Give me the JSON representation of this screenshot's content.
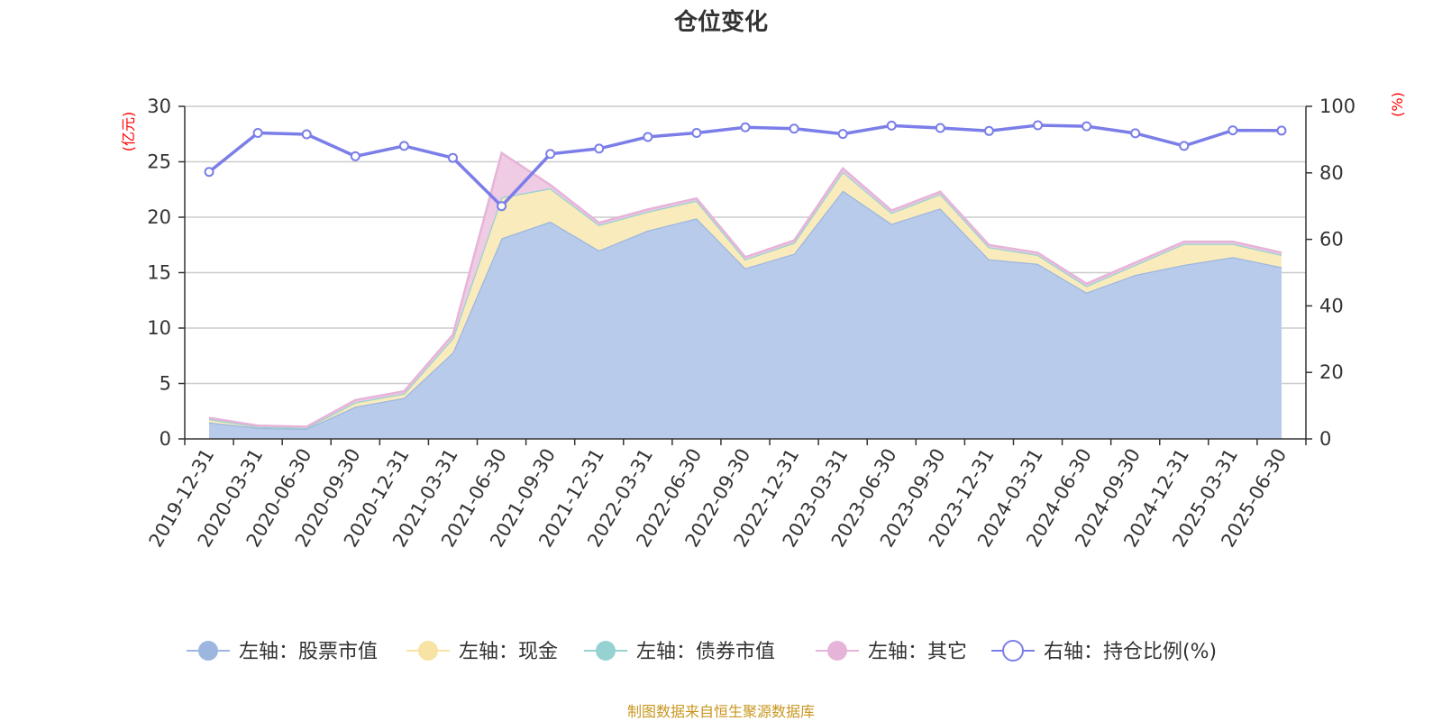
{
  "chart_data": {
    "type": "area",
    "title": "仓位变化",
    "left_unit": "(亿元)",
    "right_unit": "(%)",
    "source": "制图数据来自恒生聚源数据库",
    "x": [
      "2019-12-31",
      "2020-03-31",
      "2020-06-30",
      "2020-09-30",
      "2020-12-31",
      "2021-03-31",
      "2021-06-30",
      "2021-09-30",
      "2021-12-31",
      "2022-03-31",
      "2022-06-30",
      "2022-09-30",
      "2022-12-31",
      "2023-03-31",
      "2023-06-30",
      "2023-09-30",
      "2023-12-31",
      "2024-03-31",
      "2024-06-30",
      "2024-09-30",
      "2024-12-31",
      "2025-03-31",
      "2025-06-30"
    ],
    "left_axis": {
      "min": 0,
      "max": 30,
      "ticks": [
        "0",
        "5",
        "10",
        "15",
        "20",
        "25",
        "30"
      ]
    },
    "right_axis": {
      "min": 0,
      "max": 100,
      "ticks": [
        "0",
        "20",
        "40",
        "60",
        "80",
        "100"
      ]
    },
    "series": [
      {
        "name": "左轴：股票市值",
        "axis": "left",
        "color": "#9db6e0",
        "fill": "#b8cbea",
        "values": [
          1.5,
          1.0,
          0.9,
          2.9,
          3.7,
          7.8,
          18.1,
          19.6,
          17.0,
          18.8,
          19.9,
          15.4,
          16.7,
          22.4,
          19.4,
          20.8,
          16.2,
          15.8,
          13.2,
          14.8,
          15.7,
          16.4,
          15.5
        ]
      },
      {
        "name": "左轴：现金",
        "axis": "left",
        "color": "#f7e3a3",
        "fill": "#f9ebbb",
        "values": [
          0.3,
          0.1,
          0.1,
          0.4,
          0.4,
          1.3,
          3.7,
          3.0,
          2.3,
          1.7,
          1.6,
          0.8,
          1.0,
          1.7,
          1.0,
          1.3,
          1.1,
          0.8,
          0.6,
          0.9,
          1.9,
          1.2,
          1.1
        ]
      },
      {
        "name": "左轴：债券市值",
        "axis": "left",
        "color": "#96d2d2",
        "fill": "#a8dada",
        "values": [
          0,
          0,
          0,
          0,
          0,
          0,
          0,
          0,
          0,
          0,
          0,
          0,
          0,
          0,
          0,
          0,
          0,
          0,
          0,
          0,
          0,
          0,
          0
        ]
      },
      {
        "name": "左轴：其它",
        "axis": "left",
        "color": "#e6b4d8",
        "fill": "#efcbe4",
        "values": [
          0.1,
          0.1,
          0.1,
          0.2,
          0.2,
          0.3,
          4.0,
          0.3,
          0.2,
          0.2,
          0.2,
          0.2,
          0.2,
          0.3,
          0.2,
          0.2,
          0.2,
          0.2,
          0.2,
          0.2,
          0.2,
          0.2,
          0.2
        ]
      },
      {
        "name": "右轴：持仓比例(%)",
        "axis": "right",
        "color": "#7b7ee8",
        "values": [
          80.3,
          92.0,
          91.6,
          85.0,
          88.1,
          84.5,
          70.0,
          85.7,
          87.3,
          90.8,
          92.0,
          93.7,
          93.3,
          91.7,
          94.2,
          93.5,
          92.6,
          94.3,
          94.0,
          91.9,
          88.1,
          92.8,
          92.7
        ]
      }
    ]
  }
}
